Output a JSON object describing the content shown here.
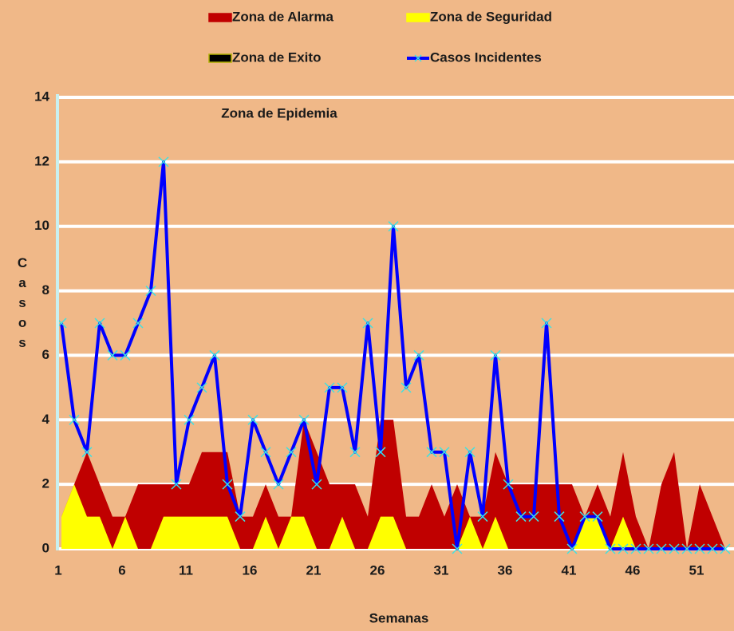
{
  "chart_data": {
    "type": "area-line",
    "annotation": "Zona de Epidemia",
    "x_label": "Semanas",
    "y_label": "Casos",
    "categories": [
      "1",
      null,
      null,
      null,
      null,
      "6",
      null,
      null,
      null,
      null,
      "11",
      null,
      null,
      null,
      null,
      "16",
      null,
      null,
      null,
      null,
      "21",
      null,
      null,
      null,
      null,
      "26",
      null,
      null,
      null,
      null,
      "31",
      null,
      null,
      null,
      null,
      "36",
      null,
      null,
      null,
      null,
      "41",
      null,
      null,
      null,
      null,
      "46",
      null,
      null,
      null,
      null,
      "51",
      null,
      null
    ],
    "ylim": [
      0,
      14
    ],
    "yticks": [
      0,
      2,
      4,
      6,
      8,
      10,
      12,
      14
    ],
    "grid": true,
    "series": [
      {
        "name": "Zona de Alarma",
        "kind": "area",
        "color": "#c00000",
        "values": [
          1,
          2,
          3,
          2,
          1,
          1,
          2,
          2,
          2,
          2,
          2,
          3,
          3,
          3,
          1,
          1,
          2,
          1,
          1,
          4,
          3,
          2,
          2,
          2,
          1,
          4,
          4,
          1,
          1,
          2,
          1,
          2,
          1,
          1,
          3,
          2,
          2,
          2,
          2,
          2,
          2,
          1,
          2,
          1,
          3,
          1,
          0,
          2,
          3,
          0,
          2,
          1,
          0
        ]
      },
      {
        "name": "Zona de Seguridad",
        "kind": "area",
        "color": "#ffff00",
        "values": [
          1,
          2,
          1,
          1,
          0,
          1,
          0,
          0,
          1,
          1,
          1,
          1,
          1,
          1,
          0,
          0,
          1,
          0,
          1,
          1,
          0,
          0,
          1,
          0,
          0,
          1,
          1,
          0,
          0,
          0,
          0,
          0,
          1,
          0,
          1,
          0,
          0,
          0,
          0,
          0,
          0,
          1,
          1,
          0,
          1,
          0,
          0,
          0,
          0,
          0,
          0,
          0,
          0
        ]
      },
      {
        "name": "Zona de Exito",
        "kind": "area",
        "color": "#000000",
        "values": [
          0,
          0,
          0,
          0,
          0,
          0,
          0,
          0,
          0,
          0,
          0,
          0,
          0,
          0,
          0,
          0,
          0,
          0,
          0,
          0,
          0,
          0,
          0,
          0,
          0,
          0,
          0,
          0,
          0,
          0,
          0,
          0,
          0,
          0,
          0,
          0,
          0,
          0,
          0,
          0,
          0,
          0,
          0,
          0,
          0,
          0,
          0,
          0,
          0,
          0,
          0,
          0,
          0
        ]
      },
      {
        "name": "Casos Incidentes",
        "kind": "line",
        "color": "#0000ff",
        "values": [
          7,
          4,
          3,
          7,
          6,
          6,
          7,
          8,
          12,
          2,
          4,
          5,
          6,
          2,
          1,
          4,
          3,
          2,
          3,
          4,
          2,
          5,
          5,
          3,
          7,
          3,
          10,
          5,
          6,
          3,
          3,
          0,
          3,
          1,
          6,
          2,
          1,
          1,
          7,
          1,
          0,
          1,
          1,
          0,
          0,
          0,
          0,
          0,
          0,
          0,
          0,
          0,
          0
        ]
      }
    ]
  }
}
